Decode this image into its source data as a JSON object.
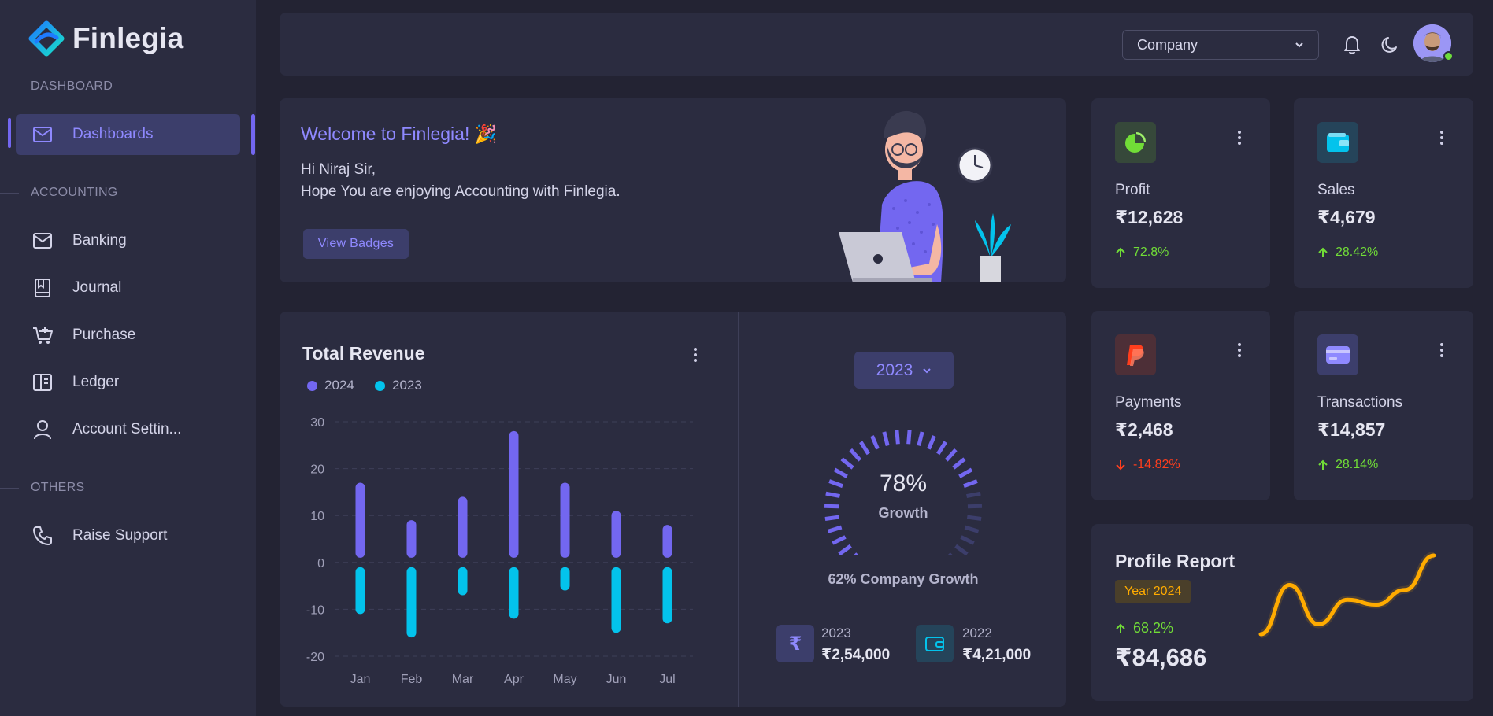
{
  "brand": {
    "name": "Finlegia"
  },
  "colors": {
    "accent": "#7367f0",
    "accent_light": "#8f89ff",
    "cyan": "#03c3ec",
    "success": "#71dd37",
    "danger": "#ff3e1d",
    "warning": "#ffab00"
  },
  "sidebar": {
    "sections": [
      {
        "header": "DASHBOARD"
      },
      {
        "header": "ACCOUNTING"
      },
      {
        "header": "OTHERS"
      }
    ],
    "items": [
      {
        "label": "Dashboards",
        "icon": "mail-icon",
        "active": true
      },
      {
        "label": "Banking",
        "icon": "mail-icon"
      },
      {
        "label": "Journal",
        "icon": "book-icon"
      },
      {
        "label": "Purchase",
        "icon": "cart-plus-icon"
      },
      {
        "label": "Ledger",
        "icon": "book-open-icon"
      },
      {
        "label": "Account Settin...",
        "icon": "user-icon"
      },
      {
        "label": "Raise Support",
        "icon": "phone-icon"
      }
    ]
  },
  "topbar": {
    "company_select": "Company",
    "icons": [
      "bell-icon",
      "moon-icon",
      "avatar"
    ]
  },
  "welcome": {
    "title": "Welcome to Finlegia! 🎉",
    "greeting": "Hi Niraj Sir,",
    "message": "Hope You are enjoying Accounting with Finlegia.",
    "button": "View Badges"
  },
  "stats": [
    {
      "label": "Profit",
      "value": "₹12,628",
      "change": "72.8%",
      "direction": "up",
      "icon": "pie-chart-icon"
    },
    {
      "label": "Sales",
      "value": "₹4,679",
      "change": "28.42%",
      "direction": "up",
      "icon": "wallet-icon"
    },
    {
      "label": "Payments",
      "value": "₹2,468",
      "change": "-14.82%",
      "direction": "down",
      "icon": "paypal-icon"
    },
    {
      "label": "Transactions",
      "value": "₹14,857",
      "change": "28.14%",
      "direction": "up",
      "icon": "credit-card-icon"
    }
  ],
  "revenue": {
    "title": "Total Revenue",
    "year_button": "2023",
    "growth_percent": "78%",
    "growth_label": "Growth",
    "company_growth": "62% Company Growth",
    "summary": [
      {
        "year": "2023",
        "value": "₹2,54,000",
        "icon": "rupee-icon"
      },
      {
        "year": "2022",
        "value": "₹4,21,000",
        "icon": "wallet-icon"
      }
    ]
  },
  "chart_data": {
    "type": "bar",
    "title": "Total Revenue",
    "categories": [
      "Jan",
      "Feb",
      "Mar",
      "Apr",
      "May",
      "Jun",
      "Jul"
    ],
    "series": [
      {
        "name": "2024",
        "values": [
          17,
          9,
          14,
          28,
          17,
          11,
          8
        ],
        "color": "#7367f0"
      },
      {
        "name": "2023",
        "values": [
          -11,
          -16,
          -7,
          -12,
          -6,
          -15,
          -13
        ],
        "color": "#03c3ec"
      }
    ],
    "yticks": [
      30,
      20,
      10,
      0,
      -10,
      -20
    ],
    "ylim": [
      -20,
      30
    ],
    "grid": true,
    "legend": "top-left"
  },
  "gauge": {
    "value": 78
  },
  "profile_report": {
    "title": "Profile Report",
    "badge": "Year 2024",
    "change": "68.2%",
    "value": "₹84,686",
    "trend": [
      10,
      60,
      20,
      45,
      40,
      55,
      90
    ]
  }
}
